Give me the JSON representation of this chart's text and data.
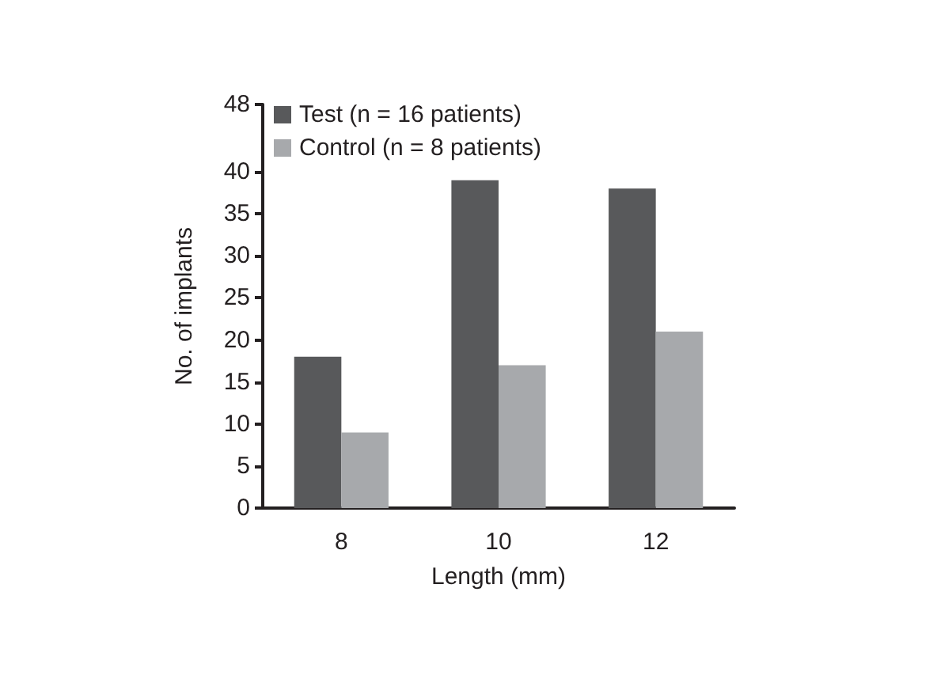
{
  "chart_data": {
    "type": "bar",
    "xlabel": "Length (mm)",
    "ylabel": "No. of implants",
    "categories": [
      "8",
      "10",
      "12"
    ],
    "series": [
      {
        "name": "Test (n = 16 patients)",
        "color": "#58595b",
        "values": [
          18,
          39,
          38
        ]
      },
      {
        "name": "Control (n = 8 patients)",
        "color": "#a7a9ac",
        "values": [
          9,
          17,
          21
        ]
      }
    ],
    "ylim": [
      0,
      48
    ],
    "yticks": [
      0,
      5,
      10,
      15,
      20,
      25,
      30,
      35,
      40,
      48
    ],
    "grid": false,
    "legend": "top left"
  }
}
